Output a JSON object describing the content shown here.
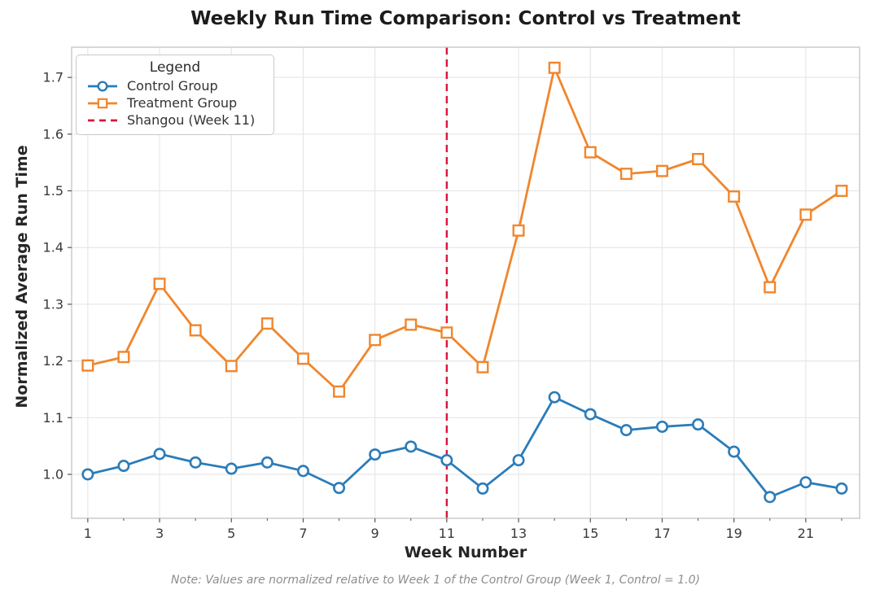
{
  "chart_data": {
    "type": "line",
    "title": "Weekly Run Time Comparison: Control vs Treatment",
    "xlabel": "Week Number",
    "ylabel": "Normalized Average Run Time",
    "note": "Note: Values are normalized relative to Week 1 of the Control Group (Week 1, Control = 1.0)",
    "x": [
      1,
      2,
      3,
      4,
      5,
      6,
      7,
      8,
      9,
      10,
      11,
      12,
      13,
      14,
      15,
      16,
      17,
      18,
      19,
      20,
      21,
      22
    ],
    "series": [
      {
        "name": "Control Group",
        "marker": "circle",
        "color": "#2b7cb8",
        "values": [
          1.0,
          1.015,
          1.036,
          1.021,
          1.01,
          1.021,
          1.006,
          0.976,
          1.035,
          1.049,
          1.025,
          0.975,
          1.025,
          1.136,
          1.106,
          1.078,
          1.084,
          1.088,
          1.04,
          0.96,
          0.986,
          0.975
        ]
      },
      {
        "name": "Treatment Group",
        "marker": "square",
        "color": "#f0862d",
        "values": [
          1.192,
          1.207,
          1.336,
          1.254,
          1.191,
          1.266,
          1.204,
          1.146,
          1.237,
          1.264,
          1.25,
          1.189,
          1.43,
          1.717,
          1.568,
          1.53,
          1.535,
          1.556,
          1.49,
          1.33,
          1.458,
          1.5
        ]
      }
    ],
    "vline": {
      "label": "Shangou (Week 11)",
      "x": 11,
      "color": "#dc143c",
      "style": "dashed"
    },
    "xticks": [
      1,
      3,
      5,
      7,
      9,
      11,
      13,
      15,
      17,
      19,
      21
    ],
    "yticks": [
      1.0,
      1.1,
      1.2,
      1.3,
      1.4,
      1.5,
      1.6,
      1.7
    ],
    "xlim": [
      0.55,
      22.5
    ],
    "ylim": [
      0.9225,
      1.7533
    ],
    "grid": true,
    "legend": {
      "title": "Legend",
      "position": "upper-left"
    },
    "colors": {
      "grid": "#e7e7e7",
      "spine": "#c8c8c8",
      "tick": "#555555",
      "tick_text": "#3a3a3a"
    }
  }
}
